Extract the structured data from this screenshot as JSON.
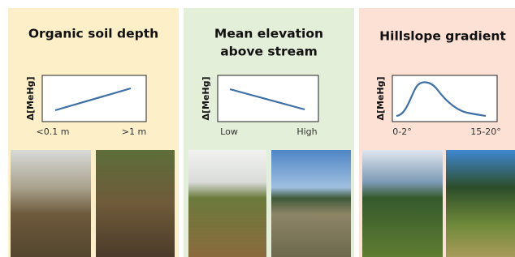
{
  "panels": [
    {
      "title_lines": [
        "Organic soil depth"
      ],
      "y_label": "Δ[MeHg]",
      "x_labels": [
        "<0.1 m",
        ">1 m"
      ]
    },
    {
      "title_lines": [
        "Mean elevation",
        "above stream"
      ],
      "y_label": "Δ[MeHg]",
      "x_labels": [
        "Low",
        "High"
      ]
    },
    {
      "title_lines": [
        "Hillslope gradient"
      ],
      "y_label": "Δ[MeHg]",
      "x_labels": [
        "0-2°",
        "15-20°"
      ]
    }
  ]
}
